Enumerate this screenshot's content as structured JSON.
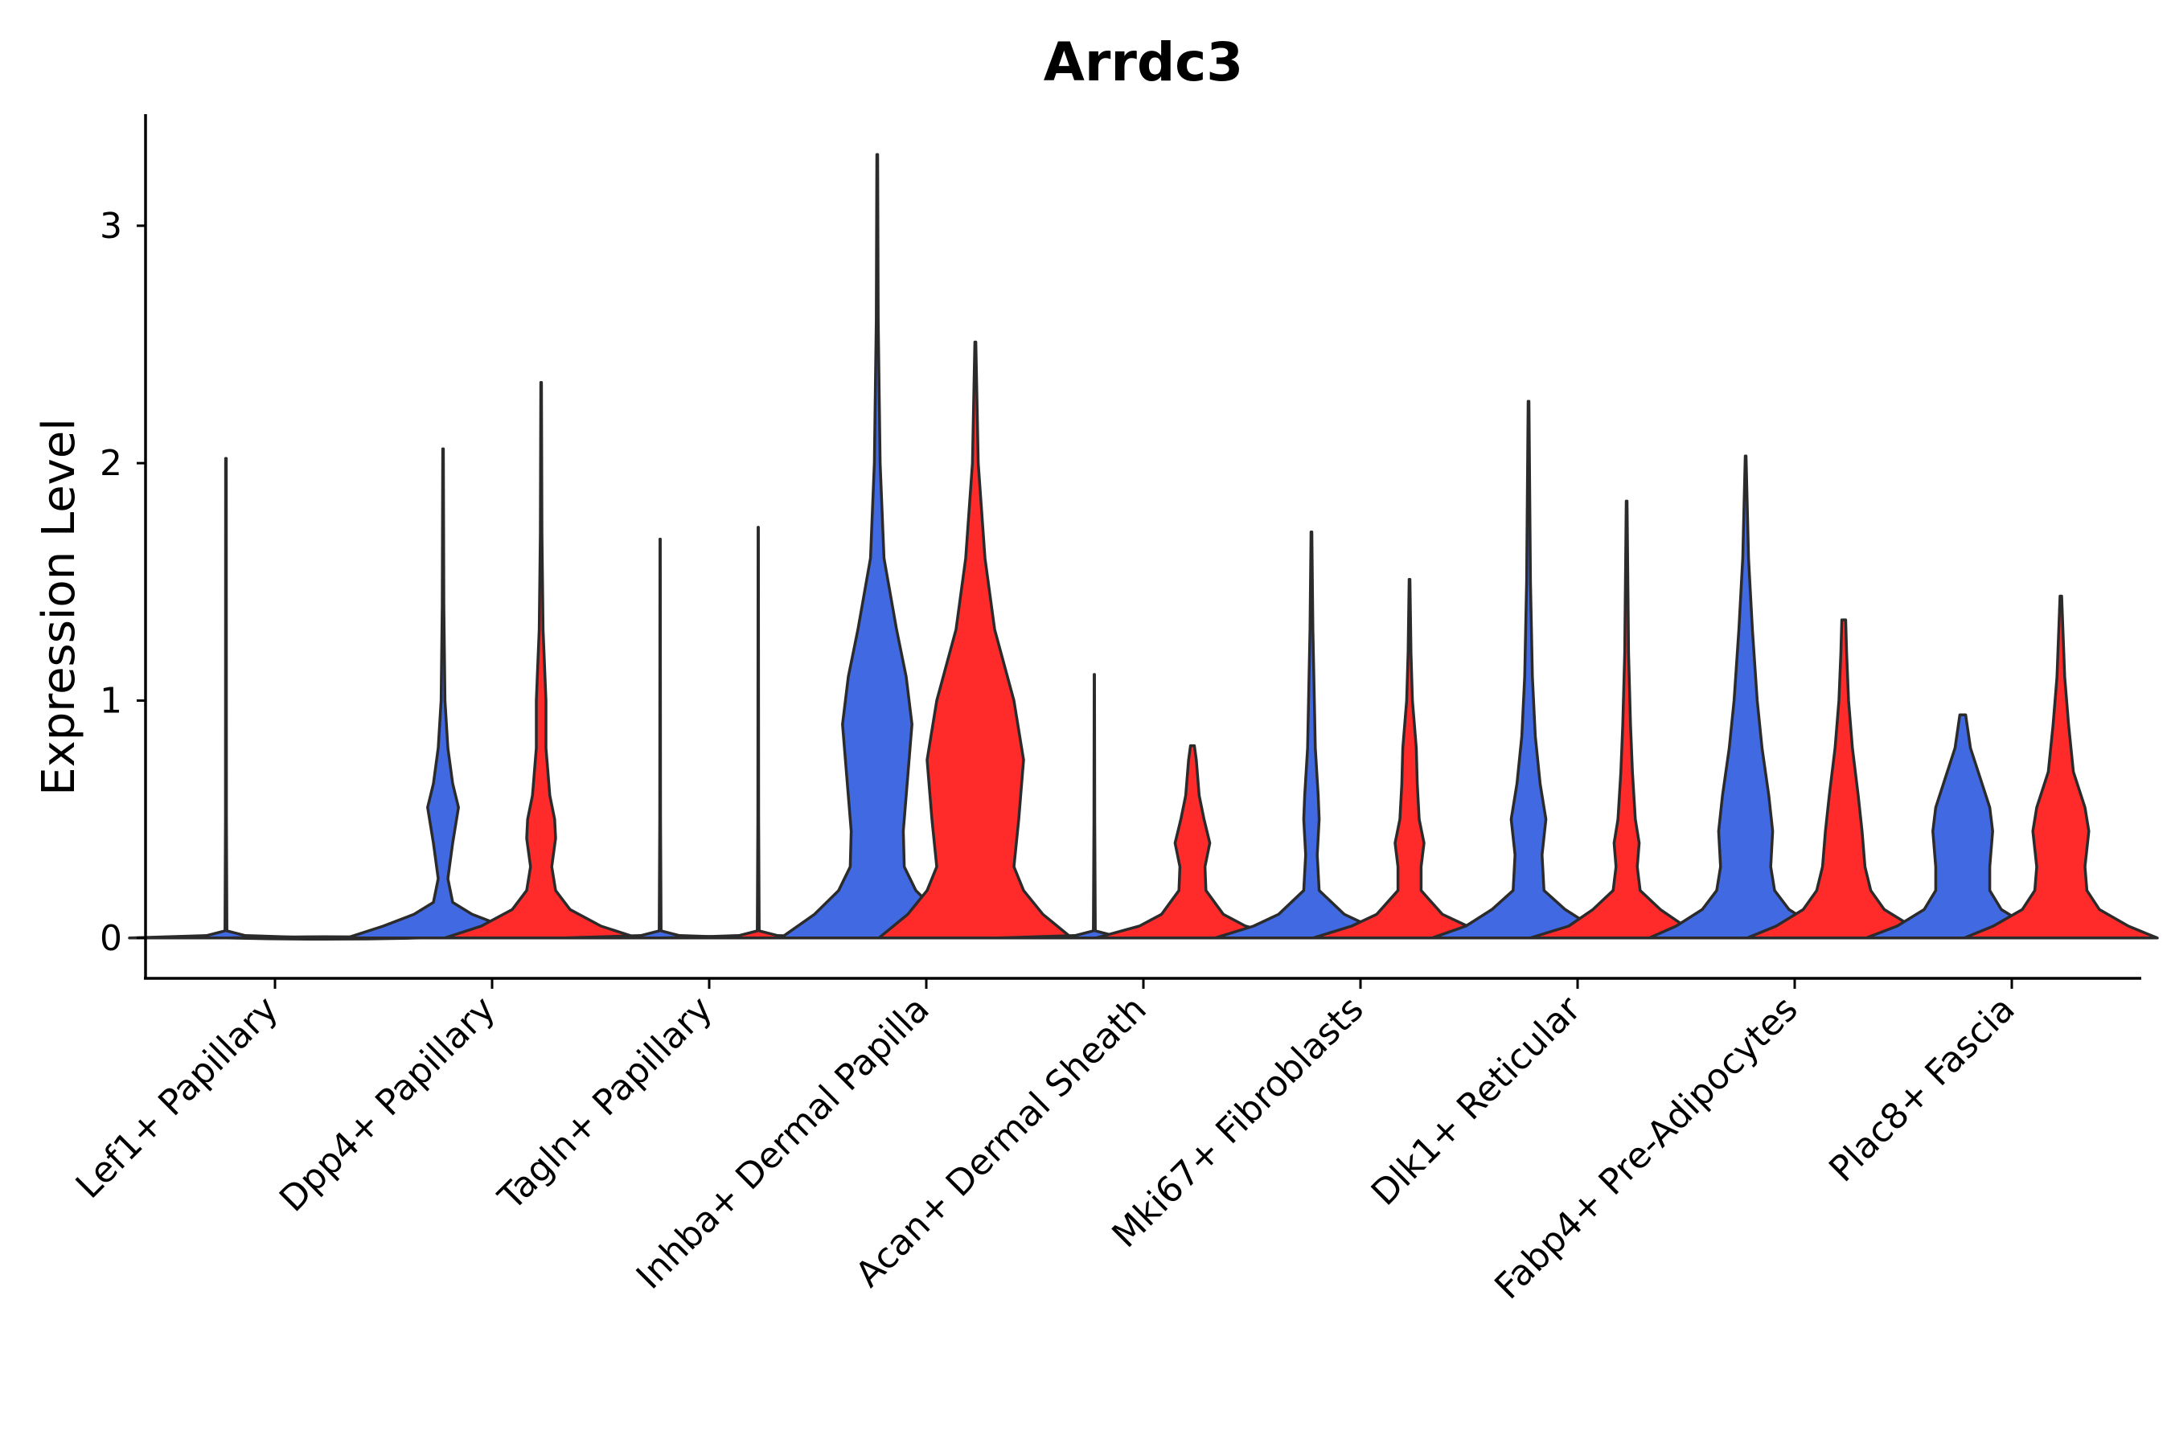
{
  "chart_data": {
    "type": "violin",
    "title": "Arrdc3",
    "xlabel": "",
    "ylabel": "Expression Level",
    "ylim": [
      -0.17,
      3.47
    ],
    "yticks": [
      0,
      1,
      2,
      3
    ],
    "legend": "none",
    "grid": false,
    "colors": {
      "group_a": "#4169E1",
      "group_b": "#FF2B2B",
      "outline": "#2b2b2b"
    },
    "categories": [
      "Lef1+ Papillary",
      "Dpp4+ Papillary",
      "Tagln+ Papillary",
      "Inhba+ Dermal Papilla",
      "Acan+ Dermal Sheath",
      "Mki67+ Fibroblasts",
      "Dlk1+ Reticular",
      "Fabp4+ Pre-Adipocytes",
      "Plac8+ Fascia"
    ],
    "violins": [
      {
        "category": 0,
        "group": "group_a",
        "max": 2.02,
        "density": [
          [
            0,
            1.0
          ],
          [
            0.01,
            0.2
          ],
          [
            0.03,
            0.01
          ],
          [
            0.5,
            0.005
          ],
          [
            2.02,
            0.003
          ]
        ]
      },
      {
        "category": 0,
        "group": "group_b",
        "max": 0.0,
        "density": [
          [
            0,
            1.0
          ]
        ]
      },
      {
        "category": 1,
        "group": "group_a",
        "max": 2.06,
        "density": [
          [
            0,
            1.0
          ],
          [
            0.05,
            0.62
          ],
          [
            0.1,
            0.3
          ],
          [
            0.15,
            0.1
          ],
          [
            0.25,
            0.05
          ],
          [
            0.4,
            0.1
          ],
          [
            0.55,
            0.16
          ],
          [
            0.65,
            0.1
          ],
          [
            0.8,
            0.05
          ],
          [
            1.0,
            0.02
          ],
          [
            1.4,
            0.008
          ],
          [
            2.06,
            0.003
          ]
        ]
      },
      {
        "category": 1,
        "group": "group_b",
        "max": 2.34,
        "density": [
          [
            0,
            1.0
          ],
          [
            0.05,
            0.62
          ],
          [
            0.12,
            0.3
          ],
          [
            0.2,
            0.15
          ],
          [
            0.3,
            0.11
          ],
          [
            0.42,
            0.15
          ],
          [
            0.5,
            0.14
          ],
          [
            0.6,
            0.09
          ],
          [
            0.8,
            0.05
          ],
          [
            1.0,
            0.05
          ],
          [
            1.3,
            0.02
          ],
          [
            1.7,
            0.008
          ],
          [
            2.34,
            0.003
          ]
        ]
      },
      {
        "category": 2,
        "group": "group_a",
        "max": 1.68,
        "density": [
          [
            0,
            1.0
          ],
          [
            0.01,
            0.2
          ],
          [
            0.03,
            0.01
          ],
          [
            0.5,
            0.004
          ],
          [
            1.68,
            0.002
          ]
        ]
      },
      {
        "category": 2,
        "group": "group_b",
        "max": 1.73,
        "density": [
          [
            0,
            1.0
          ],
          [
            0.01,
            0.2
          ],
          [
            0.03,
            0.01
          ],
          [
            0.5,
            0.004
          ],
          [
            1.73,
            0.002
          ]
        ]
      },
      {
        "category": 3,
        "group": "group_a",
        "max": 3.3,
        "density": [
          [
            0,
            1.0
          ],
          [
            0.1,
            0.65
          ],
          [
            0.2,
            0.4
          ],
          [
            0.3,
            0.28
          ],
          [
            0.45,
            0.27
          ],
          [
            0.7,
            0.32
          ],
          [
            0.9,
            0.36
          ],
          [
            1.1,
            0.3
          ],
          [
            1.3,
            0.2
          ],
          [
            1.6,
            0.07
          ],
          [
            2.0,
            0.03
          ],
          [
            2.6,
            0.01
          ],
          [
            3.3,
            0.004
          ]
        ]
      },
      {
        "category": 3,
        "group": "group_b",
        "max": 2.51,
        "density": [
          [
            0,
            1.0
          ],
          [
            0.1,
            0.7
          ],
          [
            0.2,
            0.5
          ],
          [
            0.3,
            0.4
          ],
          [
            0.5,
            0.45
          ],
          [
            0.75,
            0.5
          ],
          [
            1.0,
            0.4
          ],
          [
            1.3,
            0.2
          ],
          [
            1.6,
            0.1
          ],
          [
            2.0,
            0.03
          ],
          [
            2.51,
            0.005
          ]
        ]
      },
      {
        "category": 4,
        "group": "group_a",
        "max": 1.11,
        "density": [
          [
            0,
            1.0
          ],
          [
            0.01,
            0.2
          ],
          [
            0.03,
            0.01
          ],
          [
            0.5,
            0.004
          ],
          [
            1.11,
            0.002
          ]
        ]
      },
      {
        "category": 4,
        "group": "group_b",
        "max": 0.81,
        "density": [
          [
            0,
            1.0
          ],
          [
            0.05,
            0.55
          ],
          [
            0.1,
            0.32
          ],
          [
            0.2,
            0.14
          ],
          [
            0.3,
            0.13
          ],
          [
            0.4,
            0.18
          ],
          [
            0.5,
            0.12
          ],
          [
            0.6,
            0.07
          ],
          [
            0.75,
            0.04
          ],
          [
            0.81,
            0.02
          ]
        ]
      },
      {
        "category": 5,
        "group": "group_a",
        "max": 1.71,
        "density": [
          [
            0,
            1.0
          ],
          [
            0.05,
            0.6
          ],
          [
            0.1,
            0.34
          ],
          [
            0.2,
            0.08
          ],
          [
            0.35,
            0.06
          ],
          [
            0.5,
            0.08
          ],
          [
            0.6,
            0.07
          ],
          [
            0.8,
            0.04
          ],
          [
            1.0,
            0.03
          ],
          [
            1.3,
            0.015
          ],
          [
            1.71,
            0.004
          ]
        ]
      },
      {
        "category": 5,
        "group": "group_b",
        "max": 1.51,
        "density": [
          [
            0,
            1.0
          ],
          [
            0.05,
            0.6
          ],
          [
            0.1,
            0.34
          ],
          [
            0.2,
            0.12
          ],
          [
            0.3,
            0.12
          ],
          [
            0.4,
            0.15
          ],
          [
            0.5,
            0.1
          ],
          [
            0.65,
            0.08
          ],
          [
            0.8,
            0.07
          ],
          [
            1.0,
            0.03
          ],
          [
            1.2,
            0.015
          ],
          [
            1.51,
            0.004
          ]
        ]
      },
      {
        "category": 6,
        "group": "group_a",
        "max": 2.26,
        "density": [
          [
            0,
            1.0
          ],
          [
            0.05,
            0.65
          ],
          [
            0.12,
            0.38
          ],
          [
            0.2,
            0.16
          ],
          [
            0.35,
            0.14
          ],
          [
            0.5,
            0.18
          ],
          [
            0.65,
            0.12
          ],
          [
            0.85,
            0.07
          ],
          [
            1.1,
            0.04
          ],
          [
            1.5,
            0.02
          ],
          [
            2.26,
            0.004
          ]
        ]
      },
      {
        "category": 6,
        "group": "group_b",
        "max": 1.84,
        "density": [
          [
            0,
            1.0
          ],
          [
            0.05,
            0.6
          ],
          [
            0.12,
            0.35
          ],
          [
            0.2,
            0.14
          ],
          [
            0.3,
            0.11
          ],
          [
            0.4,
            0.13
          ],
          [
            0.5,
            0.09
          ],
          [
            0.7,
            0.06
          ],
          [
            0.9,
            0.04
          ],
          [
            1.2,
            0.02
          ],
          [
            1.84,
            0.004
          ]
        ]
      },
      {
        "category": 7,
        "group": "group_a",
        "max": 2.03,
        "density": [
          [
            0,
            1.0
          ],
          [
            0.05,
            0.72
          ],
          [
            0.12,
            0.45
          ],
          [
            0.2,
            0.3
          ],
          [
            0.3,
            0.26
          ],
          [
            0.45,
            0.28
          ],
          [
            0.6,
            0.24
          ],
          [
            0.8,
            0.17
          ],
          [
            1.0,
            0.12
          ],
          [
            1.3,
            0.07
          ],
          [
            1.6,
            0.03
          ],
          [
            2.03,
            0.004
          ]
        ]
      },
      {
        "category": 7,
        "group": "group_b",
        "max": 1.34,
        "density": [
          [
            0,
            1.0
          ],
          [
            0.05,
            0.7
          ],
          [
            0.12,
            0.42
          ],
          [
            0.2,
            0.28
          ],
          [
            0.3,
            0.22
          ],
          [
            0.45,
            0.19
          ],
          [
            0.6,
            0.15
          ],
          [
            0.8,
            0.09
          ],
          [
            1.0,
            0.05
          ],
          [
            1.2,
            0.03
          ],
          [
            1.34,
            0.02
          ]
        ]
      },
      {
        "category": 8,
        "group": "group_a",
        "max": 0.94,
        "density": [
          [
            0,
            1.0
          ],
          [
            0.05,
            0.68
          ],
          [
            0.12,
            0.4
          ],
          [
            0.2,
            0.28
          ],
          [
            0.3,
            0.28
          ],
          [
            0.45,
            0.31
          ],
          [
            0.55,
            0.28
          ],
          [
            0.65,
            0.2
          ],
          [
            0.8,
            0.08
          ],
          [
            0.94,
            0.03
          ]
        ]
      },
      {
        "category": 8,
        "group": "group_b",
        "max": 1.44,
        "density": [
          [
            0,
            1.0
          ],
          [
            0.05,
            0.7
          ],
          [
            0.12,
            0.4
          ],
          [
            0.2,
            0.27
          ],
          [
            0.3,
            0.25
          ],
          [
            0.45,
            0.29
          ],
          [
            0.55,
            0.25
          ],
          [
            0.7,
            0.13
          ],
          [
            0.9,
            0.08
          ],
          [
            1.1,
            0.04
          ],
          [
            1.44,
            0.008
          ]
        ]
      }
    ]
  }
}
